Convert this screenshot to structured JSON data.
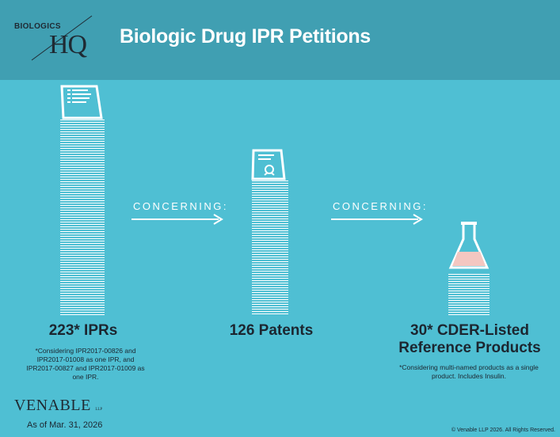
{
  "header": {
    "logo_small": "BIOLOGICS",
    "logo_large": "HQ",
    "title": "Biologic Drug IPR Petitions"
  },
  "columns": [
    {
      "headline": "223* IPRs",
      "note": "*Considering IPR2017-00826 and IPR2017-01008 as one IPR, and IPR2017-00827 and IPR2017-01009 as one IPR.",
      "icon": "document-icon"
    },
    {
      "headline": "126 Patents",
      "icon": "patent-document-icon"
    },
    {
      "headline": "30* CDER-Listed Reference Products",
      "note": "*Considering multi-named products as a single product.  Includes Insulin.",
      "icon": "flask-icon"
    }
  ],
  "connectors": [
    {
      "label": "CONCERNING:"
    },
    {
      "label": "CONCERNING:"
    }
  ],
  "footer": {
    "brand": "VENABLE",
    "brand_suffix": "LLP",
    "as_of": "As of Mar. 31, 2026",
    "copyright": "© Venable LLP 2026. All Rights Reserved."
  },
  "colors": {
    "background": "#4fbfd3",
    "header": "#409fb2",
    "text_dark": "#1c2630",
    "flask_liquid": "#f4c7c1"
  }
}
